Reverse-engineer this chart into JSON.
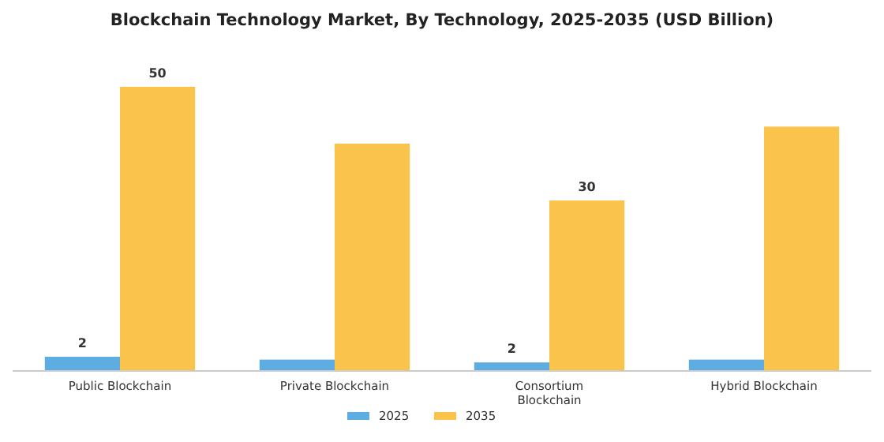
{
  "chart_data": {
    "type": "bar",
    "title": "Blockchain Technology Market, By Technology, 2025-2035 (USD Billion)",
    "categories": [
      "Public Blockchain",
      "Private Blockchain",
      "Consortium Blockchain",
      "Hybrid Blockchain"
    ],
    "series": [
      {
        "name": "2025",
        "color": "#5dade2",
        "values": [
          2.5,
          2,
          1.5,
          2
        ],
        "value_labels": [
          "2",
          null,
          "2",
          null
        ]
      },
      {
        "name": "2035",
        "color": "#f9c34c",
        "values": [
          50,
          40,
          30,
          43
        ],
        "value_labels": [
          "50",
          null,
          "30",
          null
        ]
      }
    ],
    "legend": "bottom"
  }
}
